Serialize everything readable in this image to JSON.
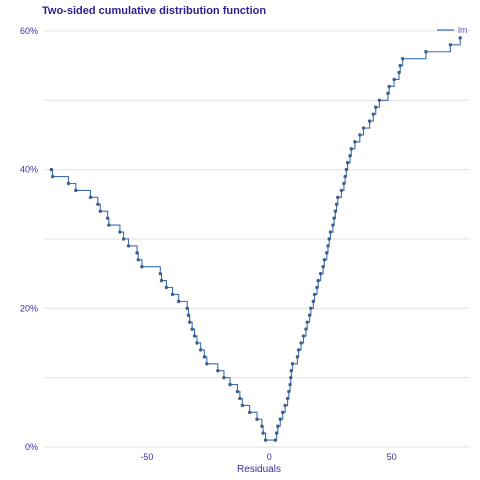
{
  "chart_data": {
    "type": "line",
    "title": "Two-sided cumulative distribution function",
    "xlabel": "Residuals",
    "ylabel": "",
    "xlim": [
      -92,
      82
    ],
    "ylim": [
      0,
      0.61
    ],
    "x_ticks": [
      {
        "value": -50,
        "label": "-50"
      },
      {
        "value": 0,
        "label": "0"
      },
      {
        "value": 50,
        "label": "50"
      }
    ],
    "y_ticks": [
      {
        "value": 0,
        "label": "0%"
      },
      {
        "value": 0.2,
        "label": "20%"
      },
      {
        "value": 0.4,
        "label": "40%"
      },
      {
        "value": 0.6,
        "label": "60%"
      }
    ],
    "y_minor_gridlines": [
      0.1,
      0.3,
      0.5
    ],
    "grid": true,
    "legend_position": "top-right",
    "series_color": "#3b6fb5",
    "point_color": "#3e5f8a",
    "series": [
      {
        "name": "lm",
        "step": "hv",
        "points": [
          [
            -89.0,
            0.4
          ],
          [
            -88.5,
            0.39
          ],
          [
            -82.0,
            0.38
          ],
          [
            -79.0,
            0.37
          ],
          [
            -73.0,
            0.36
          ],
          [
            -70.0,
            0.35
          ],
          [
            -69.0,
            0.34
          ],
          [
            -66.0,
            0.33
          ],
          [
            -65.5,
            0.32
          ],
          [
            -61.0,
            0.31
          ],
          [
            -59.5,
            0.3
          ],
          [
            -57.5,
            0.29
          ],
          [
            -54.0,
            0.28
          ],
          [
            -53.5,
            0.27
          ],
          [
            -52.0,
            0.26
          ],
          [
            -44.5,
            0.25
          ],
          [
            -44.0,
            0.24
          ],
          [
            -42.0,
            0.23
          ],
          [
            -39.5,
            0.22
          ],
          [
            -37.0,
            0.21
          ],
          [
            -33.5,
            0.2
          ],
          [
            -33.0,
            0.19
          ],
          [
            -32.5,
            0.18
          ],
          [
            -31.5,
            0.17
          ],
          [
            -30.5,
            0.16
          ],
          [
            -29.5,
            0.15
          ],
          [
            -28.0,
            0.14
          ],
          [
            -26.5,
            0.13
          ],
          [
            -25.5,
            0.12
          ],
          [
            -21.0,
            0.11
          ],
          [
            -18.5,
            0.1
          ],
          [
            -16.0,
            0.09
          ],
          [
            -13.0,
            0.08
          ],
          [
            -12.0,
            0.07
          ],
          [
            -11.0,
            0.06
          ],
          [
            -8.0,
            0.05
          ],
          [
            -5.0,
            0.04
          ],
          [
            -3.0,
            0.03
          ],
          [
            -2.5,
            0.02
          ],
          [
            -1.5,
            0.01
          ],
          [
            2.5,
            0.01
          ],
          [
            3.0,
            0.02
          ],
          [
            3.5,
            0.03
          ],
          [
            4.5,
            0.04
          ],
          [
            5.5,
            0.05
          ],
          [
            6.5,
            0.06
          ],
          [
            7.5,
            0.07
          ],
          [
            8.0,
            0.08
          ],
          [
            8.5,
            0.09
          ],
          [
            8.8,
            0.1
          ],
          [
            9.0,
            0.11
          ],
          [
            9.5,
            0.12
          ],
          [
            11.5,
            0.13
          ],
          [
            12.0,
            0.14
          ],
          [
            13.0,
            0.15
          ],
          [
            14.0,
            0.16
          ],
          [
            15.0,
            0.17
          ],
          [
            15.5,
            0.18
          ],
          [
            16.5,
            0.19
          ],
          [
            17.0,
            0.2
          ],
          [
            18.0,
            0.21
          ],
          [
            18.5,
            0.22
          ],
          [
            19.5,
            0.23
          ],
          [
            20.0,
            0.24
          ],
          [
            21.0,
            0.25
          ],
          [
            22.0,
            0.26
          ],
          [
            22.5,
            0.27
          ],
          [
            23.5,
            0.28
          ],
          [
            24.0,
            0.29
          ],
          [
            24.5,
            0.3
          ],
          [
            25.0,
            0.31
          ],
          [
            26.0,
            0.32
          ],
          [
            26.5,
            0.33
          ],
          [
            27.0,
            0.34
          ],
          [
            27.5,
            0.35
          ],
          [
            28.0,
            0.36
          ],
          [
            29.5,
            0.37
          ],
          [
            30.5,
            0.38
          ],
          [
            31.0,
            0.39
          ],
          [
            31.5,
            0.4
          ],
          [
            32.0,
            0.41
          ],
          [
            33.0,
            0.42
          ],
          [
            33.5,
            0.43
          ],
          [
            35.0,
            0.44
          ],
          [
            37.0,
            0.45
          ],
          [
            38.5,
            0.46
          ],
          [
            41.0,
            0.47
          ],
          [
            42.5,
            0.48
          ],
          [
            43.5,
            0.49
          ],
          [
            45.0,
            0.5
          ],
          [
            48.5,
            0.51
          ],
          [
            49.0,
            0.52
          ],
          [
            51.0,
            0.53
          ],
          [
            53.0,
            0.54
          ],
          [
            53.5,
            0.55
          ],
          [
            54.5,
            0.56
          ],
          [
            64.0,
            0.57
          ],
          [
            74.0,
            0.58
          ],
          [
            78.0,
            0.59
          ]
        ]
      }
    ]
  }
}
